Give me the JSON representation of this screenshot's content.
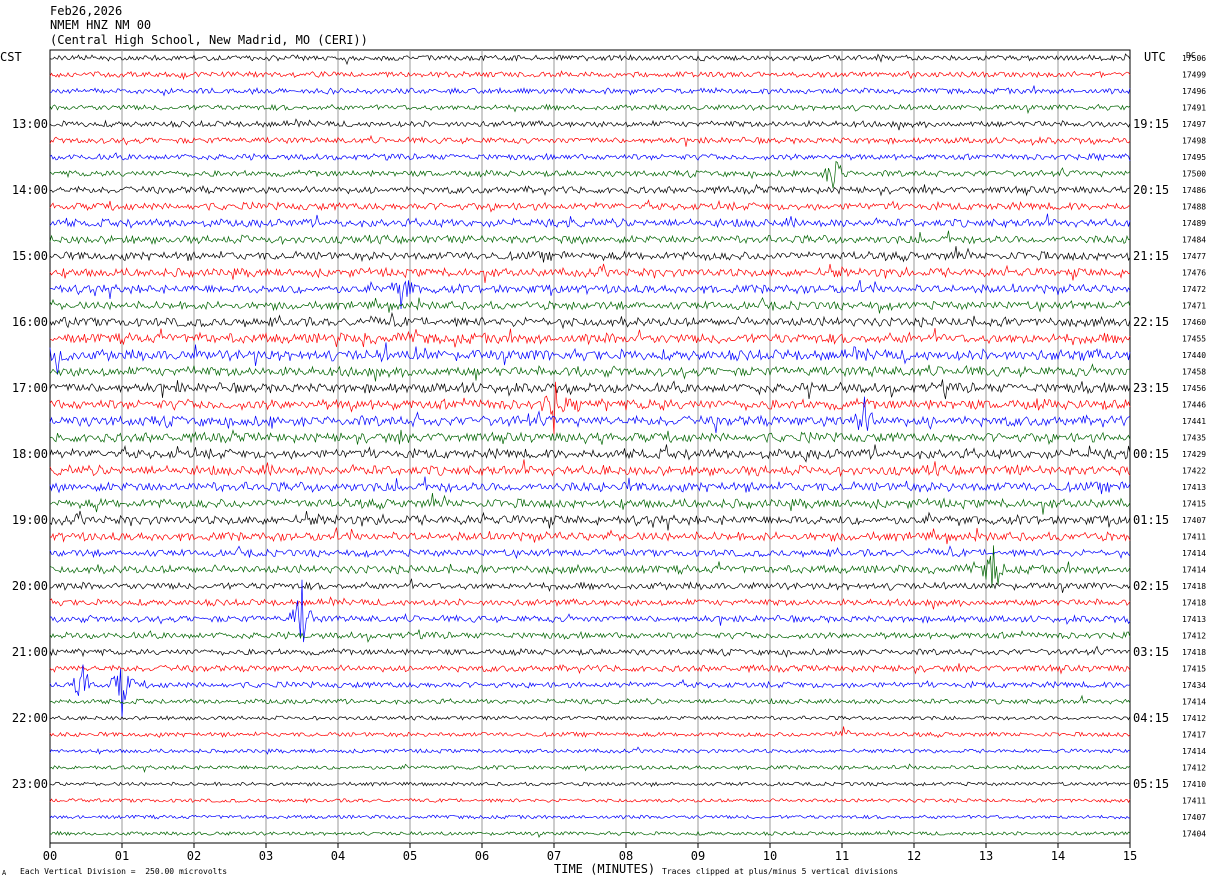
{
  "header": {
    "date": "Feb26,2026",
    "station": "NMEM HNZ NM 00",
    "location": "(Central High School, New Madrid, MO (CERI))"
  },
  "footer": {
    "division": "Each Vertical Division =  250.00 microvolts",
    "clipped": "Traces clipped at plus/minus 5 vertical divisions",
    "mark": "A"
  },
  "chart_data": {
    "type": "line",
    "title": "",
    "xlabel": "TIME (MINUTES)",
    "left_axis_label": "CST",
    "right_axis_label": "UTC",
    "corner_label": "DC",
    "x_ticks": [
      "00",
      "01",
      "02",
      "03",
      "04",
      "05",
      "06",
      "07",
      "08",
      "09",
      "10",
      "11",
      "12",
      "13",
      "14",
      "15"
    ],
    "xlim": [
      0,
      15
    ],
    "left_hour_labels": [
      {
        "trace_index": 4,
        "text": "13:00"
      },
      {
        "trace_index": 8,
        "text": "14:00"
      },
      {
        "trace_index": 12,
        "text": "15:00"
      },
      {
        "trace_index": 16,
        "text": "16:00"
      },
      {
        "trace_index": 20,
        "text": "17:00"
      },
      {
        "trace_index": 24,
        "text": "18:00"
      },
      {
        "trace_index": 28,
        "text": "19:00"
      },
      {
        "trace_index": 32,
        "text": "20:00"
      },
      {
        "trace_index": 36,
        "text": "21:00"
      },
      {
        "trace_index": 40,
        "text": "22:00"
      },
      {
        "trace_index": 44,
        "text": "23:00"
      }
    ],
    "right_hour_labels": [
      {
        "trace_index": 4,
        "text": "19:15"
      },
      {
        "trace_index": 8,
        "text": "20:15"
      },
      {
        "trace_index": 12,
        "text": "21:15"
      },
      {
        "trace_index": 16,
        "text": "22:15"
      },
      {
        "trace_index": 20,
        "text": "23:15"
      },
      {
        "trace_index": 24,
        "text": "00:15"
      },
      {
        "trace_index": 28,
        "text": "01:15"
      },
      {
        "trace_index": 32,
        "text": "02:15"
      },
      {
        "trace_index": 36,
        "text": "03:15"
      },
      {
        "trace_index": 40,
        "text": "04:15"
      },
      {
        "trace_index": 44,
        "text": "05:15"
      }
    ],
    "trace_dc_values": [
      "17506",
      "17499",
      "17496",
      "17491",
      "17497",
      "17498",
      "17495",
      "17500",
      "17486",
      "17488",
      "17489",
      "17484",
      "17477",
      "17476",
      "17472",
      "17471",
      "17460",
      "17455",
      "17440",
      "17458",
      "17456",
      "17446",
      "17441",
      "17435",
      "17429",
      "17422",
      "17413",
      "17415",
      "17407",
      "17411",
      "17414",
      "17414",
      "17418",
      "17418",
      "17413",
      "17412",
      "17418",
      "17415",
      "17434",
      "17414",
      "17412",
      "17417",
      "17414",
      "17412",
      "17410",
      "17411",
      "17407",
      "17404"
    ],
    "trace_colors": [
      "#000000",
      "#ff0000",
      "#0000ff",
      "#006400"
    ],
    "trace_activity": [
      0.3,
      0.3,
      0.3,
      0.3,
      0.35,
      0.35,
      0.35,
      0.35,
      0.45,
      0.5,
      0.55,
      0.55,
      0.6,
      0.6,
      0.6,
      0.55,
      0.65,
      0.75,
      0.8,
      0.7,
      0.7,
      0.75,
      0.75,
      0.7,
      0.7,
      0.7,
      0.7,
      0.65,
      0.65,
      0.6,
      0.45,
      0.55,
      0.45,
      0.4,
      0.4,
      0.4,
      0.35,
      0.4,
      0.35,
      0.25,
      0.15,
      0.2,
      0.15,
      0.15,
      0.12,
      0.12,
      0.12,
      0.12
    ],
    "events": [
      {
        "trace_index": 14,
        "minute": 4.9,
        "amplitude": 1.8
      },
      {
        "trace_index": 18,
        "minute": 0.1,
        "amplitude": 1.0
      },
      {
        "trace_index": 21,
        "minute": 7.0,
        "amplitude": 1.6
      },
      {
        "trace_index": 22,
        "minute": 11.3,
        "amplitude": 1.5
      },
      {
        "trace_index": 34,
        "minute": 3.5,
        "amplitude": 2.5
      },
      {
        "trace_index": 38,
        "minute": 1.0,
        "amplitude": 2.0
      },
      {
        "trace_index": 38,
        "minute": 0.45,
        "amplitude": 1.5
      },
      {
        "trace_index": 31,
        "minute": 13.1,
        "amplitude": 1.8
      },
      {
        "trace_index": 7,
        "minute": 10.9,
        "amplitude": 1.4
      },
      {
        "trace_index": 41,
        "minute": 11.0,
        "amplitude": 0.5
      }
    ],
    "grid": true,
    "legend": "none"
  }
}
